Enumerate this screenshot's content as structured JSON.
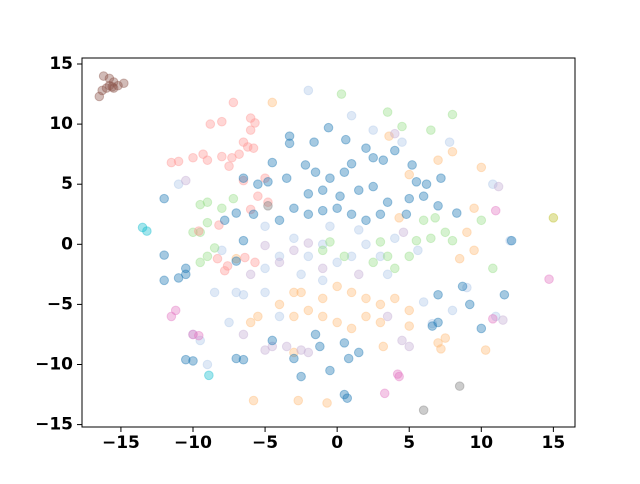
{
  "chart_data": {
    "type": "scatter",
    "xlim": [
      -17.7,
      16.5
    ],
    "ylim": [
      -15.2,
      15.5
    ],
    "xticks": [
      {
        "value": -15,
        "label": "−15"
      },
      {
        "value": -10,
        "label": "−10"
      },
      {
        "value": -5,
        "label": "−5"
      },
      0,
      5,
      10,
      15
    ],
    "yticks": [
      {
        "value": -15,
        "label": "−15"
      },
      {
        "value": -10,
        "label": "−10"
      },
      {
        "value": -5,
        "label": "−5"
      },
      0,
      5,
      10,
      15
    ],
    "alpha": 0.4,
    "grid": false,
    "series": [
      {
        "color": "#aec7e8",
        "x": [
          -2,
          1,
          2.5,
          -8,
          -7,
          -5,
          -4,
          -3,
          -2,
          -1,
          0,
          1,
          2,
          3,
          4,
          3.5,
          -2.5,
          -1,
          -5,
          -6.5,
          -8.5,
          -9.5,
          -10,
          -7.5,
          6,
          6.6,
          9,
          11,
          12,
          10.8,
          -11,
          4.5,
          5.6,
          -0.5,
          1.5,
          -5,
          -9,
          8,
          -4,
          7.8
        ],
        "values": [
          12.8,
          10.7,
          9.5,
          -0.5,
          -4,
          -2,
          -1,
          0.5,
          -1,
          0,
          -1.5,
          -1,
          0,
          -1,
          0.5,
          -2.5,
          -2.5,
          -3,
          -4,
          -4.2,
          -4,
          -8,
          -7.5,
          -6.5,
          -4.8,
          -6.6,
          -3.6,
          -6,
          0.3,
          5,
          5,
          8.5,
          -0.5,
          1.5,
          1.2,
          1.5,
          -10,
          -5.5,
          -6,
          8.5
        ]
      },
      {
        "color": "#ffbb78",
        "x": [
          -4.5,
          3.6,
          5,
          7,
          8,
          10,
          9.5,
          9,
          8.5,
          9.5,
          -3,
          -2.5,
          -1,
          0,
          1,
          2,
          3,
          4,
          5,
          -2,
          -1,
          0,
          1,
          2,
          3,
          -3,
          -4,
          -5.5,
          -6,
          3.2,
          5,
          7,
          7.2,
          10.3,
          -5.8,
          -2.7,
          -0.7,
          4.3,
          -7,
          -3,
          7.5
        ],
        "values": [
          11.8,
          9,
          5.8,
          7,
          7.7,
          6.4,
          3,
          1,
          -1.2,
          -0.5,
          -4,
          -4,
          -4.5,
          -3.5,
          -4,
          -4.5,
          -5,
          -4.5,
          -5.5,
          -5.5,
          -6,
          -6.5,
          -7,
          -6,
          -6.5,
          -6,
          -5,
          -6,
          -6.5,
          -8.5,
          -6.8,
          -8.2,
          -8.7,
          -8.8,
          -13,
          -13,
          -13.2,
          2.2,
          -1.2,
          -9,
          -7.8
        ]
      },
      {
        "color": "#98df8a",
        "x": [
          0.3,
          3.5,
          4.5,
          6.5,
          8,
          -7.2,
          -8,
          -9.5,
          -9,
          -9.5,
          -10,
          -9,
          -8.5,
          -9,
          -9.5,
          -0.5,
          -1,
          0.5,
          2.5,
          3,
          3.5,
          5,
          5.5,
          4,
          6,
          6.5,
          6.8,
          7.5,
          8,
          10,
          10.8
        ],
        "values": [
          12.5,
          11,
          9.8,
          9.5,
          10.8,
          3.8,
          3,
          3.3,
          3.5,
          1,
          1,
          1.8,
          -0.3,
          -1,
          -1.5,
          0.2,
          -0.5,
          -1,
          -1.5,
          0.2,
          -1,
          -1,
          0.3,
          -2,
          2,
          0.5,
          2.2,
          1,
          0.3,
          2,
          -2
        ]
      },
      {
        "color": "#ff9896",
        "x": [
          -6,
          -5.7,
          -6.5,
          -7.3,
          -6.8,
          -8,
          -9,
          -10,
          -11,
          -11.5,
          -7.5,
          -6.2,
          -5.8,
          -5,
          -4.8,
          -5.5,
          -6,
          -8.2,
          -9.6,
          -6.4,
          -7.6,
          -7.8,
          -8.3,
          -5.7,
          -8.8,
          -8,
          -7.2,
          -6,
          -9.3,
          -6.5
        ],
        "values": [
          9.5,
          10.1,
          8.5,
          7.2,
          7.5,
          7.3,
          7,
          7.2,
          6.9,
          6.8,
          6.5,
          8.1,
          8,
          5.5,
          3.5,
          4,
          2.9,
          1.6,
          1.1,
          -1.1,
          -1.8,
          -2.2,
          -1.2,
          -1.5,
          10,
          10.2,
          11.8,
          10.5,
          7.5,
          5.3
        ]
      },
      {
        "color": "#c5b0d5",
        "x": [
          -10.5,
          4,
          -5,
          -3,
          -2,
          -4,
          -6,
          -4.5,
          -3.5,
          -2.5,
          -2,
          -5,
          4.5,
          5,
          11.5,
          11.2,
          4.6,
          -1,
          1.5,
          3.5,
          -6.5
        ],
        "values": [
          5.3,
          9.2,
          -0.1,
          -0.5,
          0.1,
          -1.5,
          -2.5,
          -8.5,
          -8.5,
          -8.8,
          -9,
          -8.8,
          -8,
          -8.5,
          -6.3,
          4.8,
          1,
          -2,
          -2.5,
          -6,
          -7.5
        ]
      },
      {
        "color": "#1f77b4",
        "x": [
          -3.3,
          -3.3,
          -1.6,
          -0.6,
          0.6,
          2,
          -2.2,
          -1.5,
          -4.5,
          -4.8,
          -5.5,
          -6.5,
          -3.5,
          -0.5,
          0.5,
          1,
          2.5,
          3.2,
          4,
          5.2,
          5.5,
          6.2,
          7.2,
          6,
          5,
          4.8,
          7,
          8.3,
          -2,
          -1,
          0.2,
          1.5,
          2.5,
          3.5,
          -3,
          -2,
          -1,
          0,
          1,
          2,
          3,
          -4,
          -5.8,
          -7,
          -7.8,
          -6.5,
          -7,
          -12,
          -12,
          -12,
          -11,
          -10.5,
          -10.5,
          -10,
          -10.5,
          -7,
          -6.5,
          -4.5,
          -1.5,
          -1.2,
          0.5,
          0.8,
          -0.5,
          0.5,
          0.7,
          1.5,
          -3,
          6.6,
          7,
          7,
          10,
          11.6,
          8.7,
          9.2,
          12.1,
          -2.5
        ],
        "values": [
          9,
          8.4,
          8.5,
          9.7,
          8.7,
          8,
          6.6,
          6,
          6.8,
          5.2,
          5,
          5.5,
          5.5,
          5.5,
          6,
          6.7,
          7.2,
          7,
          7.8,
          6.6,
          5.2,
          5,
          5.5,
          4,
          3.8,
          2.5,
          3.2,
          2.6,
          4.2,
          4.5,
          4,
          4.5,
          4.8,
          3.5,
          3,
          2.5,
          2.8,
          3,
          2.5,
          2,
          2.5,
          2,
          2.5,
          2.6,
          2,
          0.3,
          -1.4,
          3.8,
          -0.9,
          -3,
          -2.8,
          -2.5,
          -2,
          -9.7,
          -9.6,
          -9.5,
          -9.6,
          -8,
          -7.5,
          -8.5,
          -8.2,
          -9.5,
          -10.5,
          -12.5,
          -12.8,
          -9,
          -9.5,
          -6.8,
          -6.5,
          -4.2,
          -7,
          -4.2,
          -3.5,
          -5,
          0.3,
          -11
        ]
      },
      {
        "color": "#e377c2",
        "x": [
          11,
          14.7,
          -11.5,
          -11.2,
          -10,
          -9.6,
          3.3,
          4.2,
          4.3,
          10.8
        ],
        "values": [
          2.8,
          -2.9,
          -6,
          -5.5,
          -7.5,
          -7.6,
          -12.4,
          -10.8,
          -11,
          -6.2
        ]
      },
      {
        "color": "#8c564b",
        "x": [
          -16.2,
          -15.8,
          -15.5,
          -15.8,
          -15.5,
          -15.2,
          -14.8,
          -16,
          -16.5,
          -16.3,
          -15.6
        ],
        "values": [
          14,
          13.8,
          13.5,
          13.2,
          13,
          13.2,
          13.4,
          13,
          12.3,
          12.8,
          13.1
        ]
      },
      {
        "color": "#17becf",
        "x": [
          -13.5,
          -13.2,
          -8.9
        ],
        "values": [
          1.4,
          1.1,
          -10.9
        ]
      },
      {
        "color": "#7f7f7f",
        "x": [
          8.5,
          6,
          -4.8
        ],
        "values": [
          -11.8,
          -13.8,
          3.2
        ]
      },
      {
        "color": "#bcbd22",
        "x": [
          15
        ],
        "values": [
          2.2
        ]
      }
    ]
  }
}
